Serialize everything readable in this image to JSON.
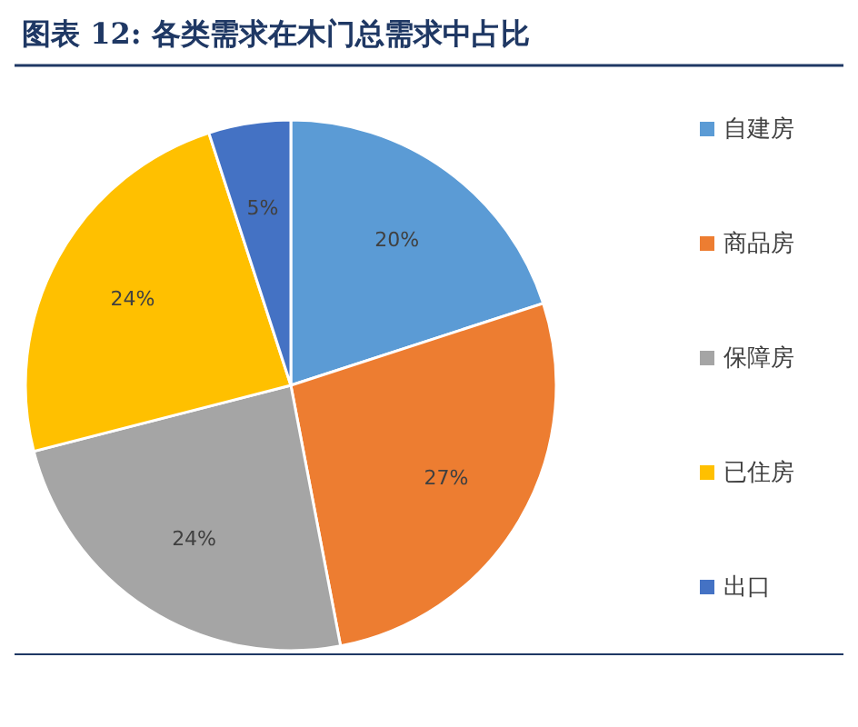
{
  "chart_data": {
    "type": "pie",
    "title": "图表 12:  各类需求在木门总需求中占比",
    "categories": [
      "自建房",
      "商品房",
      "保障房",
      "已住房",
      "出口"
    ],
    "values": [
      20,
      27,
      24,
      24,
      5
    ],
    "colors": [
      "#5b9bd5",
      "#ed7d31",
      "#a5a5a5",
      "#ffc000",
      "#4472c4"
    ],
    "value_labels": [
      "20%",
      "27%",
      "24%",
      "24%",
      "5%"
    ],
    "legend": "right"
  }
}
